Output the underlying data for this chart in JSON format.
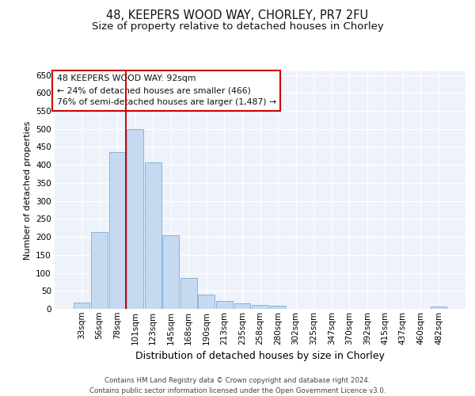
{
  "title1": "48, KEEPERS WOOD WAY, CHORLEY, PR7 2FU",
  "title2": "Size of property relative to detached houses in Chorley",
  "xlabel": "Distribution of detached houses by size in Chorley",
  "ylabel": "Number of detached properties",
  "categories": [
    "33sqm",
    "56sqm",
    "78sqm",
    "101sqm",
    "123sqm",
    "145sqm",
    "168sqm",
    "190sqm",
    "213sqm",
    "235sqm",
    "258sqm",
    "280sqm",
    "302sqm",
    "325sqm",
    "347sqm",
    "370sqm",
    "392sqm",
    "415sqm",
    "437sqm",
    "460sqm",
    "482sqm"
  ],
  "values": [
    17,
    213,
    436,
    500,
    407,
    205,
    85,
    40,
    21,
    16,
    12,
    8,
    0,
    0,
    0,
    0,
    0,
    0,
    0,
    0,
    6
  ],
  "bar_color": "#c5d9f0",
  "bar_edge_color": "#7badd4",
  "vline_color": "#cc0000",
  "vline_x_index": 3,
  "annotation_text": "48 KEEPERS WOOD WAY: 92sqm\n← 24% of detached houses are smaller (466)\n76% of semi-detached houses are larger (1,487) →",
  "annotation_box_facecolor": "#ffffff",
  "annotation_box_edgecolor": "#cc0000",
  "ylim": [
    0,
    660
  ],
  "yticks": [
    0,
    50,
    100,
    150,
    200,
    250,
    300,
    350,
    400,
    450,
    500,
    550,
    600,
    650
  ],
  "footer": "Contains HM Land Registry data © Crown copyright and database right 2024.\nContains public sector information licensed under the Open Government Licence v3.0.",
  "bg_color": "#eef2fa",
  "grid_color": "#ffffff",
  "title1_fontsize": 10.5,
  "title2_fontsize": 9.5,
  "ylabel_fontsize": 8,
  "xlabel_fontsize": 9,
  "tick_fontsize": 7.5,
  "annot_fontsize": 7.8,
  "footer_fontsize": 6.2
}
